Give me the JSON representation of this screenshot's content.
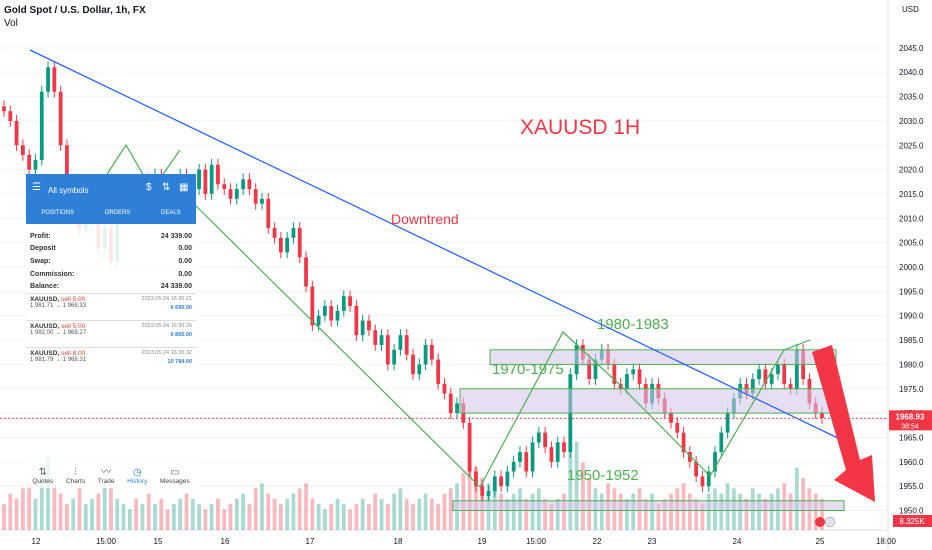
{
  "header": {
    "title": "Gold Spot / U.S. Dollar, 1h, FX",
    "sub": "Vol"
  },
  "colors": {
    "up": "#089981",
    "down": "#f23645",
    "trend": "#2962ff",
    "annotation": "#4caf50",
    "big_label": "#f23645",
    "zone_fill": "#d1c4e9",
    "arrow": "#f23645"
  },
  "chart_data": {
    "type": "candlestick",
    "title": "XAUUSD  1H",
    "price_axis": {
      "unit": "USD",
      "min": 1946,
      "max": 2046,
      "ticks": [
        1950,
        1955,
        1960,
        1965,
        1970,
        1975,
        1980,
        1985,
        1990,
        1995,
        2000,
        2005,
        2010,
        2015,
        2020,
        2025,
        2030,
        2035,
        2040,
        2045
      ]
    },
    "time_axis": {
      "ticks": [
        "12",
        "15:00",
        "15",
        "16",
        "17",
        "18",
        "19",
        "15:00",
        "22",
        "23",
        "24",
        "25",
        "18:00"
      ]
    },
    "current_price": 1968.93,
    "countdown": "38:54",
    "volume_label": "8.325K",
    "close_path": [
      2032,
      2030,
      2025,
      2023,
      2020,
      2022,
      2036,
      2041,
      2036,
      2025,
      2014,
      2017,
      2008,
      2009,
      2012,
      2004,
      2008,
      2001,
      2010,
      2014,
      2017,
      2013,
      2018,
      2015,
      2019,
      2017,
      2014,
      2016,
      2019,
      2013,
      2016,
      2020,
      2015,
      2021,
      2017,
      2016,
      2014,
      2016,
      2018,
      2016,
      2013,
      2014,
      2008,
      2006,
      2003,
      2006,
      2008,
      2002,
      1996,
      1988,
      1990,
      1992,
      1989,
      1991,
      1994,
      1992,
      1986,
      1989,
      1987,
      1984,
      1986,
      1980,
      1983,
      1986,
      1982,
      1978,
      1980,
      1984,
      1981,
      1976,
      1974,
      1970,
      1972,
      1968,
      1958,
      1955,
      1953,
      1954,
      1957,
      1955,
      1958,
      1960,
      1962,
      1958,
      1964,
      1966,
      1963,
      1960,
      1964,
      1962,
      1978,
      1984,
      1981,
      1977,
      1981,
      1983,
      1980,
      1976,
      1975,
      1978,
      1979,
      1976,
      1972,
      1976,
      1973,
      1970,
      1968,
      1966,
      1962,
      1960,
      1957,
      1955,
      1958,
      1962,
      1966,
      1970,
      1973,
      1976,
      1974,
      1977,
      1979,
      1976,
      1978,
      1980,
      1976,
      1975,
      1983,
      1977,
      1972,
      1970,
      1969
    ],
    "volume_path": [
      10,
      14,
      12,
      16,
      18,
      12,
      20,
      28,
      18,
      14,
      10,
      12,
      16,
      10,
      12,
      14,
      18,
      16,
      12,
      10,
      8,
      12,
      10,
      14,
      10,
      12,
      8,
      10,
      12,
      14,
      12,
      10,
      8,
      10,
      12,
      8,
      10,
      12,
      14,
      10,
      16,
      18,
      14,
      12,
      10,
      12,
      14,
      16,
      18,
      12,
      10,
      8,
      10,
      12,
      10,
      8,
      10,
      12,
      10,
      14,
      12,
      10,
      14,
      16,
      12,
      10,
      12,
      14,
      12,
      10,
      14,
      16,
      18,
      22,
      30,
      24,
      20,
      18,
      16,
      14,
      12,
      14,
      16,
      12,
      14,
      16,
      12,
      10,
      12,
      14,
      30,
      34,
      26,
      20,
      16,
      14,
      18,
      16,
      14,
      12,
      14,
      16,
      12,
      14,
      10,
      12,
      14,
      16,
      18,
      14,
      12,
      10,
      14,
      16,
      14,
      18,
      16,
      14,
      12,
      16,
      14,
      12,
      14,
      16,
      18,
      14,
      24,
      20,
      16,
      14,
      12
    ],
    "levels": [
      {
        "label": "1980-1983",
        "low": 1980,
        "high": 1983
      },
      {
        "label": "1970-1975",
        "low": 1970,
        "high": 1975
      },
      {
        "label": "1950-1952",
        "low": 1950,
        "high": 1952
      }
    ],
    "annotation": "Downtrend"
  },
  "panel": {
    "symbol": "All symbols",
    "tabs": [
      "POSITIONS",
      "ORDERS",
      "DEALS"
    ],
    "rows": [
      {
        "label": "Profit:",
        "value": "24 339.00"
      },
      {
        "label": "Deposit",
        "value": "0.00"
      },
      {
        "label": "Swap:",
        "value": "0.00"
      },
      {
        "label": "Commission:",
        "value": "0.00"
      },
      {
        "label": "Balance:",
        "value": "24 339.00"
      }
    ],
    "trades": [
      {
        "sym": "XAUUSD,",
        "side": "sell 5.00",
        "prices": "1 981.71 → 1 968.33",
        "time": "2023.05.24 16:30:21",
        "profit": "6 690.00"
      },
      {
        "sym": "XAUUSD,",
        "side": "sell 5.00",
        "prices": "1 982.00 → 1 968.27",
        "time": "2023.05.24 16:30:26",
        "profit": "6 865.00"
      },
      {
        "sym": "XAUUSD,",
        "side": "sell 8.00",
        "prices": "1 981.79 → 1 968.31",
        "time": "2023.05.24 16:30:32",
        "profit": "10 784.00"
      }
    ]
  },
  "bottom_nav": [
    "Quotes",
    "Charts",
    "Trade",
    "History",
    "Messages"
  ]
}
